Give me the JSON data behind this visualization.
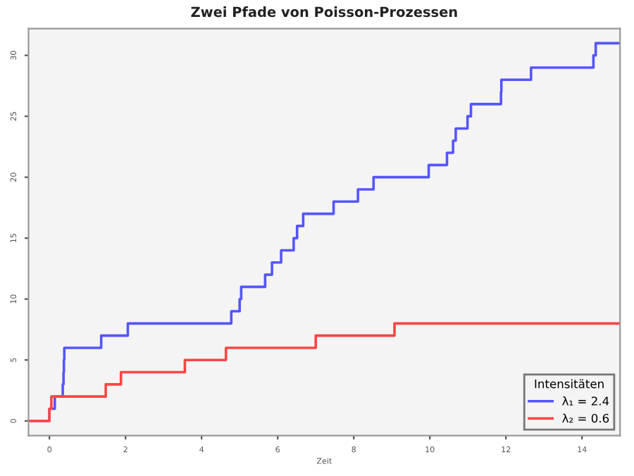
{
  "chart_data": {
    "type": "step",
    "title": "Zwei Pfade von Poisson-Prozessen",
    "xlabel": "Zeit",
    "xlim": [
      -0.55,
      15
    ],
    "ylim": [
      -1.2,
      32.2
    ],
    "xticks": [
      0,
      2,
      4,
      6,
      8,
      10,
      12,
      14
    ],
    "yticks": [
      0,
      5,
      10,
      15,
      20,
      25,
      30
    ],
    "legend_title": "Intensitäten",
    "legend": "bottom right",
    "grid": false,
    "marker": "none",
    "line_style": "solid",
    "series": [
      {
        "name": "λ₁ = 2.4",
        "color": "#5555ff",
        "x": [
          -0.55,
          0.0,
          0.14,
          0.35,
          0.37,
          0.38,
          0.39,
          1.36,
          2.06,
          4.78,
          5.0,
          5.04,
          5.67,
          5.85,
          6.09,
          6.42,
          6.51,
          6.67,
          7.47,
          8.11,
          8.52,
          9.97,
          10.45,
          10.61,
          10.68,
          10.99,
          11.08,
          11.87,
          11.88,
          12.66,
          14.3,
          14.36,
          15
        ],
        "values": [
          0,
          1,
          2,
          3,
          4,
          5,
          6,
          7,
          8,
          9,
          10,
          11,
          12,
          13,
          14,
          15,
          16,
          17,
          18,
          19,
          20,
          21,
          22,
          23,
          24,
          25,
          26,
          27,
          28,
          29,
          30,
          31,
          31
        ]
      },
      {
        "name": "λ₂ = 0.6",
        "color": "#ff4444",
        "x": [
          -0.55,
          0.0,
          0.05,
          1.48,
          1.88,
          3.56,
          4.64,
          7.0,
          9.07,
          15
        ],
        "values": [
          0,
          1,
          2,
          3,
          4,
          5,
          6,
          7,
          8,
          8
        ]
      }
    ]
  }
}
